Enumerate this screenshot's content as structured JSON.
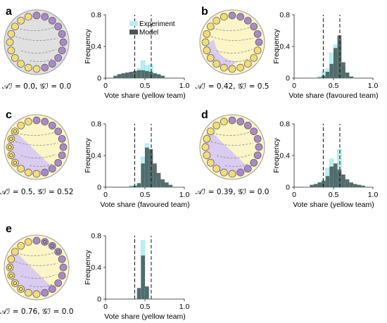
{
  "figure": {
    "legend": {
      "experiment": "Experiment",
      "model": "Model"
    },
    "colors": {
      "purple": "#a98ac6",
      "purple_fill": "#d8c8f2",
      "yellow": "#f3dc78",
      "yellow_fill": "#fbf5c8",
      "grey": "#c9c9c9",
      "grey_fill": "#e0e0e0",
      "experiment": "#b8f0f2",
      "model": "#3d4d4d"
    },
    "panels": [
      {
        "letter": "a",
        "caption": "𝒜ℐ = 0.0, 𝒢ℐ = 0.0",
        "circle": {
          "purple_count": 10,
          "badge_nodes": [],
          "wedge": "none"
        },
        "chart_data": {
          "type": "bar",
          "xlabel": "Vote share (yellow team)",
          "ylabel": "Frequency",
          "xlim": [
            0,
            1
          ],
          "ylim": [
            0,
            0.8
          ],
          "xticks": [
            "0",
            "0.5",
            "1.0"
          ],
          "yticks": [
            "0",
            "0.4",
            "0.8"
          ],
          "dashed_lines": [
            0.37,
            0.58
          ],
          "bin_centers": [
            0.125,
            0.175,
            0.225,
            0.275,
            0.325,
            0.375,
            0.425,
            0.475,
            0.525,
            0.575,
            0.625,
            0.675,
            0.725
          ],
          "series": [
            {
              "name": "Experiment",
              "values": [
                0.02,
                0.04,
                0.06,
                0.06,
                0.05,
                0.08,
                0.12,
                0.22,
                0.16,
                0.17,
                0.06,
                0.03,
                0.02
              ]
            },
            {
              "name": "Model",
              "values": [
                0.03,
                0.05,
                0.06,
                0.07,
                0.08,
                0.09,
                0.1,
                0.1,
                0.09,
                0.08,
                0.06,
                0.05,
                0.03
              ]
            }
          ]
        }
      },
      {
        "letter": "b",
        "caption": "𝒜ℐ = 0.42, 𝒢ℐ = 0.5",
        "circle": {
          "purple_count": 6,
          "badge_nodes": [],
          "wedge": "small"
        },
        "chart_data": {
          "type": "bar",
          "xlabel": "Vote share (favoured team)",
          "ylabel": "Frequency",
          "xlim": [
            0,
            1
          ],
          "ylim": [
            0,
            0.8
          ],
          "xticks": [
            "0",
            "0.5",
            "1.0"
          ],
          "yticks": [
            "0",
            "0.4",
            "0.8"
          ],
          "dashed_lines": [
            0.37,
            0.58
          ],
          "bin_centers": [
            0.325,
            0.375,
            0.425,
            0.475,
            0.525,
            0.575,
            0.625,
            0.675,
            0.725
          ],
          "series": [
            {
              "name": "Experiment",
              "values": [
                0.02,
                0.08,
                0.12,
                0.32,
                0.42,
                0.48,
                0.14,
                0.05,
                0.02
              ]
            },
            {
              "name": "Model",
              "values": [
                0.01,
                0.03,
                0.08,
                0.18,
                0.38,
                0.54,
                0.2,
                0.07,
                0.02
              ]
            }
          ]
        }
      },
      {
        "letter": "c",
        "caption": "𝒜ℐ = 0.5, 𝒢ℐ = 0.52",
        "circle": {
          "purple_count": 10,
          "badge_nodes": [
            13,
            14,
            15,
            16,
            17
          ],
          "wedge": "large"
        },
        "chart_data": {
          "type": "bar",
          "xlabel": "Vote share (favoured team)",
          "ylabel": "Frequency",
          "xlim": [
            0,
            1
          ],
          "ylim": [
            0,
            0.8
          ],
          "xticks": [
            "0",
            "0.5",
            "1.0"
          ],
          "yticks": [
            "0",
            "0.4",
            "0.8"
          ],
          "dashed_lines": [
            0.37,
            0.58
          ],
          "bin_centers": [
            0.325,
            0.375,
            0.425,
            0.475,
            0.525,
            0.575,
            0.625,
            0.675,
            0.725,
            0.775,
            0.825
          ],
          "series": [
            {
              "name": "Experiment",
              "values": [
                0.02,
                0.02,
                0.05,
                0.38,
                0.55,
                0.42,
                0.18,
                0.1,
                0.05,
                0.02,
                0.01
              ]
            },
            {
              "name": "Model",
              "values": [
                0.01,
                0.02,
                0.05,
                0.3,
                0.5,
                0.48,
                0.3,
                0.18,
                0.1,
                0.06,
                0.03
              ]
            }
          ]
        }
      },
      {
        "letter": "d",
        "caption": "𝒜ℐ = 0.39, 𝒢ℐ = 0.0",
        "circle": {
          "purple_count": 10,
          "badge_nodes": [],
          "wedge": "large"
        },
        "chart_data": {
          "type": "bar",
          "xlabel": "Vote share (yellow team)",
          "ylabel": "Frequency",
          "xlim": [
            0,
            1
          ],
          "ylim": [
            0,
            0.8
          ],
          "xticks": [
            "0",
            "0.5",
            "1.0"
          ],
          "yticks": [
            "0",
            "0.4",
            "0.8"
          ],
          "dashed_lines": [
            0.37,
            0.58
          ],
          "bin_centers": [
            0.225,
            0.275,
            0.325,
            0.375,
            0.425,
            0.475,
            0.525,
            0.575,
            0.625,
            0.675,
            0.725,
            0.775,
            0.825,
            0.875
          ],
          "series": [
            {
              "name": "Experiment",
              "values": [
                0.02,
                0.04,
                0.06,
                0.1,
                0.24,
                0.36,
                0.22,
                0.48,
                0.12,
                0.06,
                0.04,
                0.02,
                0.01,
                0.01
              ]
            },
            {
              "name": "Model",
              "values": [
                0.03,
                0.04,
                0.06,
                0.08,
                0.14,
                0.26,
                0.3,
                0.22,
                0.16,
                0.1,
                0.06,
                0.04,
                0.03,
                0.02
              ]
            }
          ]
        }
      },
      {
        "letter": "e",
        "caption": "𝒜ℐ = 0.76, 𝒢ℐ = 0.0",
        "circle": {
          "purple_count": 10,
          "badge_nodes": [
            1,
            2,
            3,
            12,
            13,
            14,
            15
          ],
          "wedge": "large"
        },
        "chart_data": {
          "type": "bar",
          "xlabel": "Vote share (yellow team)",
          "ylabel": "Frequency",
          "xlim": [
            0,
            1
          ],
          "ylim": [
            0,
            0.8
          ],
          "xticks": [
            "0",
            "0.5",
            "1.0"
          ],
          "yticks": [
            "0",
            "0.4",
            "0.8"
          ],
          "dashed_lines": [
            0.37,
            0.58
          ],
          "bin_centers": [
            0.425,
            0.475,
            0.525
          ],
          "series": [
            {
              "name": "Experiment",
              "values": [
                0.12,
                0.74,
                0.14
              ]
            },
            {
              "name": "Model",
              "values": [
                0.14,
                0.55,
                0.16
              ]
            }
          ]
        }
      }
    ]
  }
}
